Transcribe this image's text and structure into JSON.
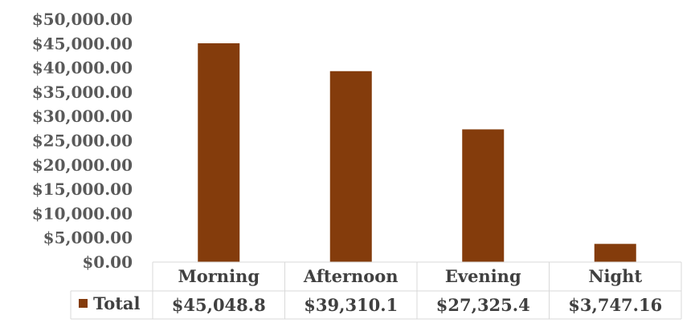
{
  "chart_data": {
    "type": "bar",
    "categories": [
      "Morning",
      "Afternoon",
      "Evening",
      "Night"
    ],
    "series": [
      {
        "name": "Total",
        "values": [
          45048.8,
          39310.1,
          27325.4,
          3747.16
        ],
        "value_labels": [
          "$45,048.8",
          "$39,310.1",
          "$27,325.4",
          "$3,747.16"
        ],
        "color": "#843C0C"
      }
    ],
    "ylim": [
      0,
      50000
    ],
    "yticks": [
      0,
      5000,
      10000,
      15000,
      20000,
      25000,
      30000,
      35000,
      40000,
      45000,
      50000
    ],
    "ytick_labels": [
      "$0.00",
      "$5,000.00",
      "$10,000.00",
      "$15,000.00",
      "$20,000.00",
      "$25,000.00",
      "$30,000.00",
      "$35,000.00",
      "$40,000.00",
      "$45,000.00",
      "$50,000.00"
    ],
    "grid": false,
    "data_table": true,
    "legend": "data-table"
  }
}
